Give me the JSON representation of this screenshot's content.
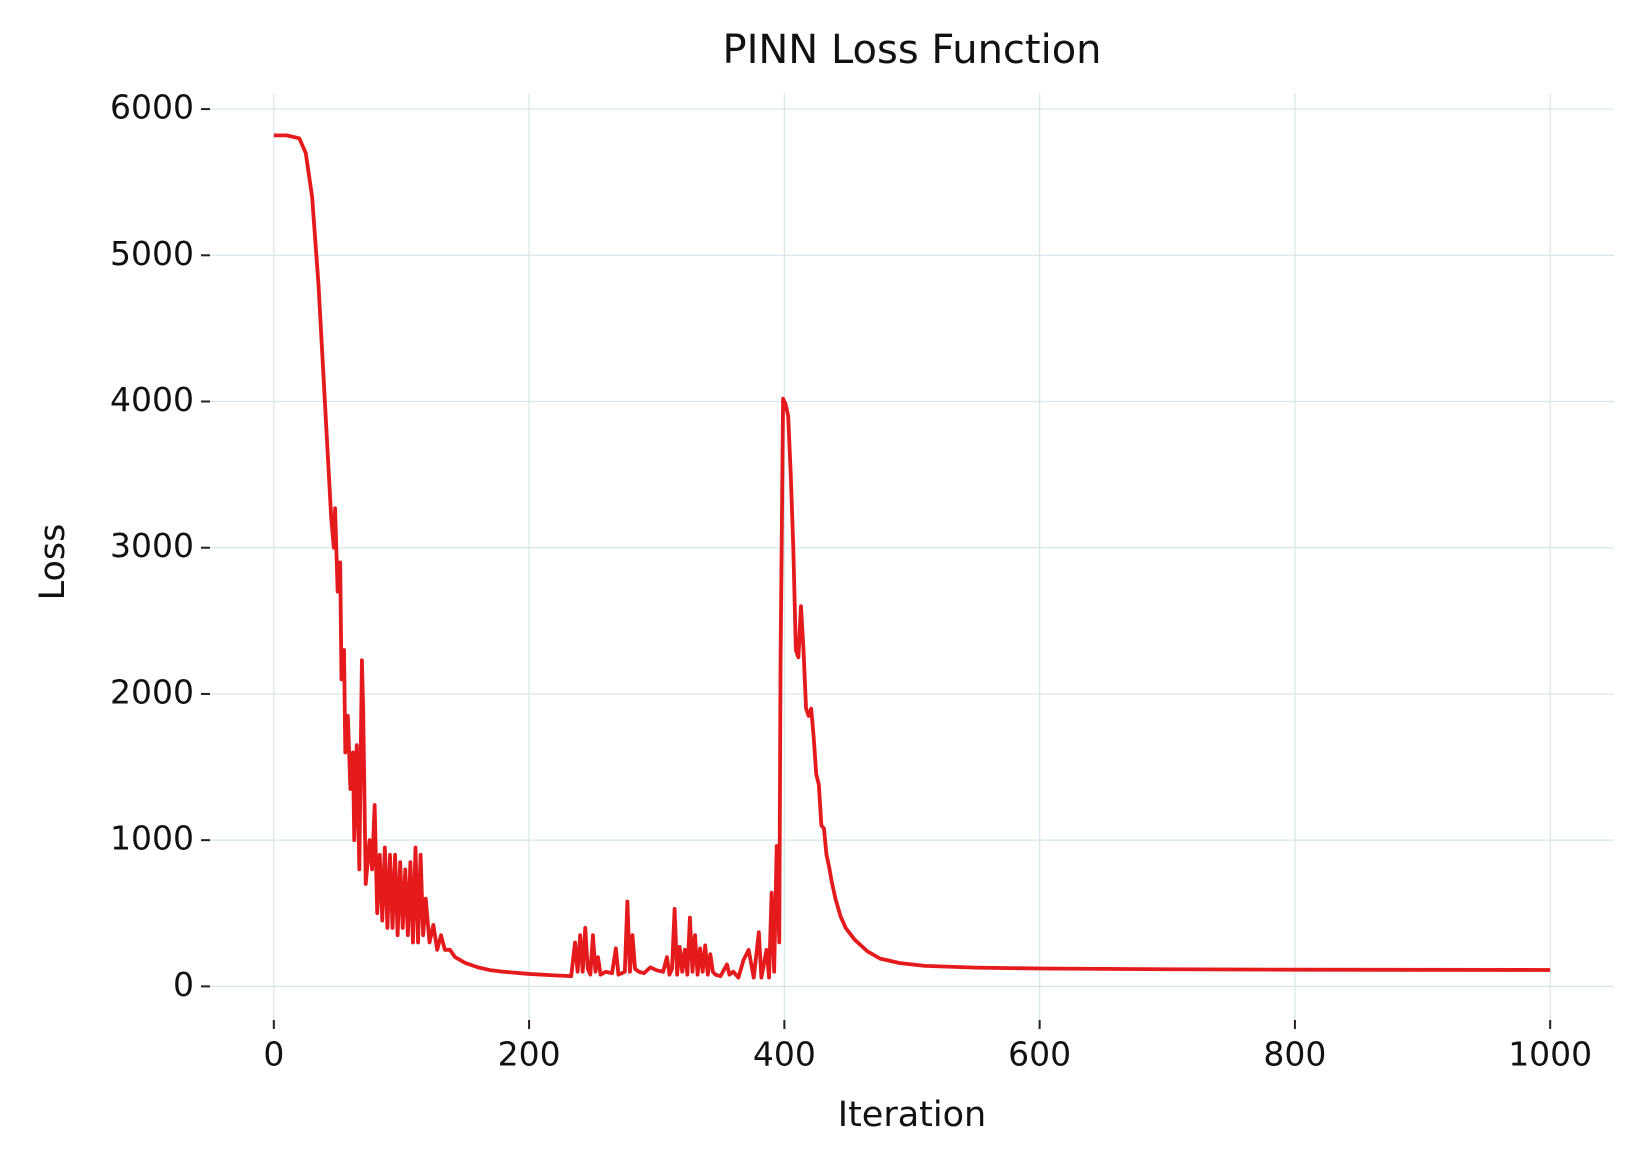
{
  "chart_data": {
    "type": "line",
    "title": "PINN Loss Function",
    "x_label": "Iteration",
    "y_label": "Loss",
    "color": "#e41a1c",
    "grid": true,
    "xlim": [
      -50,
      1050
    ],
    "ylim": [
      -230,
      6110
    ],
    "xticks": [
      0,
      200,
      400,
      600,
      800,
      1000
    ],
    "yticks": [
      0,
      1000,
      2000,
      3000,
      4000,
      5000,
      6000
    ],
    "x": [
      0,
      10,
      20,
      25,
      30,
      35,
      40,
      45,
      47,
      48,
      50,
      52,
      53,
      55,
      56,
      58,
      60,
      62,
      63,
      65,
      67,
      69,
      70,
      72,
      75,
      77,
      79,
      81,
      83,
      85,
      87,
      89,
      91,
      93,
      95,
      97,
      99,
      101,
      103,
      105,
      107,
      109,
      111,
      113,
      115,
      117,
      119,
      122,
      125,
      128,
      131,
      134,
      138,
      142,
      146,
      150,
      160,
      170,
      180,
      200,
      220,
      233,
      236,
      238,
      240,
      242,
      244,
      246,
      248,
      250,
      252,
      254,
      256,
      260,
      265,
      268,
      270,
      275,
      277,
      279,
      281,
      283,
      286,
      290,
      295,
      300,
      305,
      308,
      310,
      312,
      314,
      316,
      318,
      320,
      322,
      324,
      326,
      328,
      330,
      332,
      334,
      336,
      338,
      340,
      342,
      344,
      346,
      350,
      355,
      357,
      360,
      364,
      368,
      372,
      376,
      380,
      382,
      386,
      388,
      390,
      392,
      394,
      396,
      397,
      399,
      401,
      403,
      405,
      407,
      409,
      411,
      413,
      415,
      417,
      419,
      421,
      423,
      425,
      427,
      429,
      431,
      433,
      435,
      437,
      440,
      444,
      448,
      455,
      465,
      475,
      490,
      510,
      550,
      600,
      700,
      800,
      1000
    ],
    "values": [
      5820,
      5820,
      5800,
      5700,
      5400,
      4800,
      4000,
      3200,
      3000,
      3270,
      2700,
      2900,
      2100,
      2300,
      1600,
      1850,
      1350,
      1600,
      1000,
      1650,
      800,
      2230,
      1900,
      700,
      1000,
      800,
      1240,
      500,
      900,
      450,
      950,
      400,
      900,
      400,
      900,
      350,
      850,
      400,
      800,
      350,
      850,
      300,
      950,
      300,
      900,
      350,
      600,
      300,
      420,
      250,
      350,
      250,
      250,
      200,
      180,
      160,
      130,
      110,
      100,
      85,
      75,
      70,
      300,
      100,
      350,
      100,
      400,
      120,
      80,
      350,
      100,
      200,
      80,
      100,
      90,
      260,
      80,
      100,
      580,
      100,
      350,
      120,
      100,
      90,
      130,
      110,
      100,
      200,
      80,
      120,
      530,
      80,
      270,
      100,
      250,
      80,
      470,
      100,
      350,
      80,
      260,
      100,
      280,
      80,
      220,
      100,
      80,
      70,
      150,
      80,
      100,
      60,
      180,
      250,
      60,
      370,
      60,
      250,
      60,
      640,
      100,
      960,
      300,
      2200,
      4020,
      3980,
      3900,
      3500,
      3000,
      2300,
      2250,
      2600,
      2300,
      1900,
      1850,
      1900,
      1700,
      1450,
      1380,
      1100,
      1080,
      900,
      820,
      720,
      600,
      480,
      400,
      320,
      240,
      190,
      160,
      140,
      128,
      122,
      117,
      114,
      112
    ]
  }
}
